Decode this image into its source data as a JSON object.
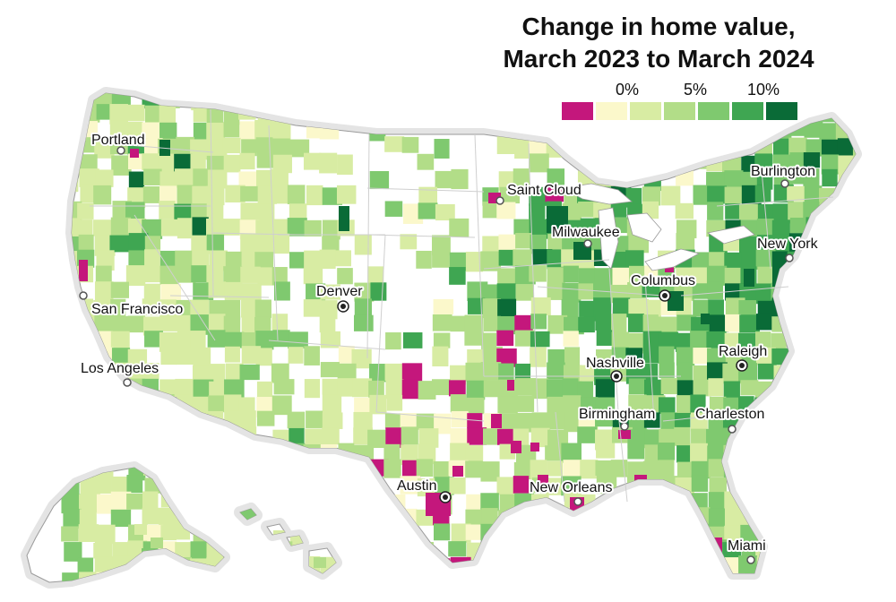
{
  "title": {
    "line1": "Change in home value,",
    "line2": "March 2023 to March 2024"
  },
  "legend": {
    "labels": [
      "0%",
      "5%",
      "10%"
    ],
    "bins": [
      {
        "color": "#c4177c"
      },
      {
        "color": "#fbf8cb"
      },
      {
        "color": "#d8eca3"
      },
      {
        "color": "#b2dd88"
      },
      {
        "color": "#7fc96f"
      },
      {
        "color": "#3fa652"
      },
      {
        "color": "#0a6b37"
      }
    ]
  },
  "cities": [
    {
      "name": "Portland",
      "marker": "hollow"
    },
    {
      "name": "Saint Cloud",
      "marker": "hollow"
    },
    {
      "name": "Burlington",
      "marker": "hollow"
    },
    {
      "name": "Milwaukee",
      "marker": "hollow"
    },
    {
      "name": "New York",
      "marker": "hollow"
    },
    {
      "name": "Columbus",
      "marker": "filled"
    },
    {
      "name": "Denver",
      "marker": "filled"
    },
    {
      "name": "San Francisco",
      "marker": "hollow"
    },
    {
      "name": "Nashville",
      "marker": "filled"
    },
    {
      "name": "Raleigh",
      "marker": "filled"
    },
    {
      "name": "Los Angeles",
      "marker": "hollow"
    },
    {
      "name": "Birmingham",
      "marker": "hollow"
    },
    {
      "name": "Charleston",
      "marker": "hollow"
    },
    {
      "name": "Austin",
      "marker": "filled"
    },
    {
      "name": "New Orleans",
      "marker": "hollow"
    },
    {
      "name": "Miami",
      "marker": "hollow"
    }
  ],
  "colors": {
    "land": "#ffffff",
    "border": "#cfcfcf",
    "coast_halo": "#e4e4e4"
  }
}
